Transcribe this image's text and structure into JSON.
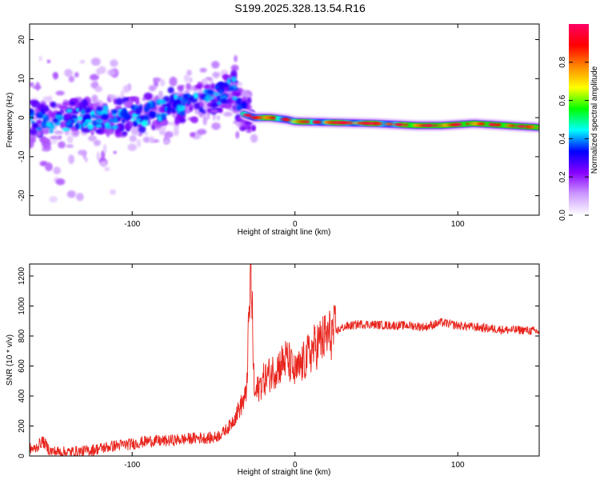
{
  "title": "S199.2025.328.13.54.R16",
  "chart_data": [
    {
      "type": "heatmap",
      "title": "S199.2025.328.13.54.R16",
      "xlabel": "Height of straight line (km)",
      "ylabel": "Frequency (Hz)",
      "xlim": [
        -163,
        150
      ],
      "ylim": [
        -25,
        24
      ],
      "xticks": [
        -100,
        0,
        100
      ],
      "yticks": [
        -20,
        -10,
        0,
        10,
        20
      ],
      "colorbar": {
        "label": "Normalized spectral amplitude",
        "range": [
          0.0,
          1.0
        ],
        "ticks": [
          0.0,
          0.2,
          0.4,
          0.6,
          0.8
        ],
        "colormap": [
          "#ffffff",
          "#cc99ff",
          "#8800ff",
          "#0000ff",
          "#00ffff",
          "#00ff00",
          "#ffff00",
          "#ff8800",
          "#ff0000",
          "#ff0066"
        ]
      },
      "ridge": {
        "x": [
          -163,
          -150,
          -130,
          -110,
          -90,
          -75,
          -60,
          -45,
          -38,
          -32,
          -25,
          -15,
          -5,
          0,
          20,
          50,
          75,
          90,
          110,
          130,
          150
        ],
        "frequency": [
          0,
          -1,
          0,
          0,
          1,
          3,
          4,
          6,
          8,
          1,
          0,
          0,
          -0.5,
          -1,
          -1.2,
          -1.5,
          -2,
          -2,
          -1.5,
          -2,
          -2.5
        ]
      }
    },
    {
      "type": "line",
      "xlabel": "Height of straight line (km)",
      "ylabel": "SNR (10 * v/v)",
      "xlim": [
        -163,
        150
      ],
      "ylim": [
        0,
        1280
      ],
      "xticks": [
        -100,
        0,
        100
      ],
      "yticks": [
        0,
        200,
        400,
        600,
        800,
        1000,
        1200
      ],
      "series": [
        {
          "name": "SNR",
          "color": "#e8241c",
          "x": [
            -163,
            -160,
            -155,
            -150,
            -140,
            -130,
            -120,
            -110,
            -100,
            -90,
            -80,
            -70,
            -60,
            -50,
            -45,
            -40,
            -35,
            -30,
            -27,
            -25,
            -20,
            -15,
            -10,
            -5,
            0,
            5,
            10,
            15,
            20,
            25,
            30,
            40,
            50,
            60,
            70,
            80,
            90,
            100,
            110,
            120,
            130,
            140,
            150
          ],
          "values": [
            50,
            45,
            100,
            30,
            25,
            30,
            50,
            70,
            80,
            100,
            100,
            110,
            120,
            120,
            150,
            200,
            300,
            400,
            1250,
            400,
            500,
            550,
            600,
            650,
            550,
            620,
            700,
            760,
            800,
            830,
            860,
            880,
            875,
            870,
            870,
            860,
            890,
            870,
            860,
            850,
            840,
            840,
            830
          ]
        }
      ]
    }
  ]
}
